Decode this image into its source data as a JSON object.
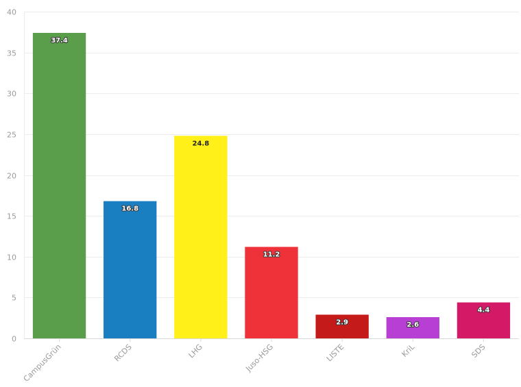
{
  "chart_data": {
    "type": "bar",
    "categories": [
      "CampusGrün",
      "RCDS",
      "LHG",
      "Juso-HSG",
      "LISTE",
      "KriL",
      "SDS"
    ],
    "values": [
      37.4,
      16.8,
      24.8,
      11.2,
      2.9,
      2.6,
      4.4
    ],
    "data_labels": [
      "37.4",
      "16.8",
      "24.8",
      "11.2",
      "2.9",
      "2.6",
      "4.4"
    ],
    "colors": [
      "#5a9e4b",
      "#1a7fc1",
      "#fff01a",
      "#ef3239",
      "#c41a1a",
      "#b83fd4",
      "#d41a66"
    ],
    "label_styles": [
      "light",
      "light",
      "dark",
      "light",
      "light",
      "light",
      "light"
    ],
    "yticks": [
      "0",
      "5",
      "10",
      "15",
      "20",
      "25",
      "30",
      "35",
      "40"
    ],
    "ylim": [
      0,
      40
    ],
    "title": "",
    "xlabel": "",
    "ylabel": "",
    "grid": true,
    "legend": "none"
  }
}
